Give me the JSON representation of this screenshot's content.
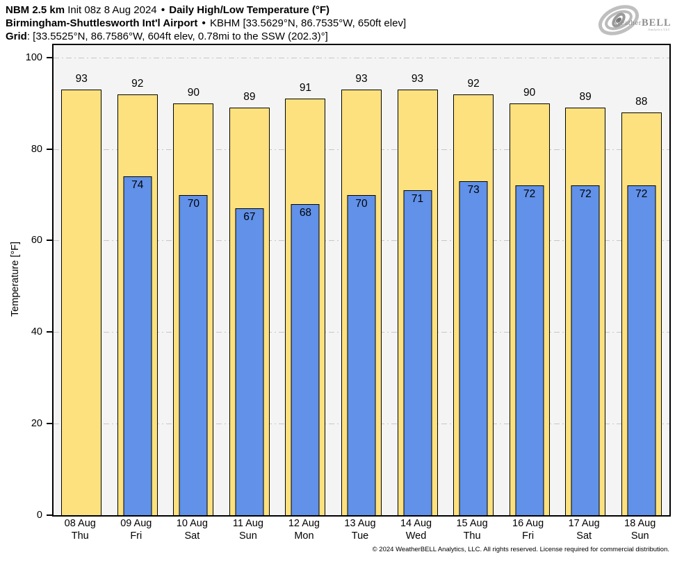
{
  "header": {
    "line1": {
      "model": "NBM 2.5 km",
      "init": "Init 08z 8 Aug 2024",
      "separator": "•",
      "product": "Daily High/Low Temperature (°F)"
    },
    "line2": {
      "station_name": "Birmingham-Shuttlesworth Int'l Airport",
      "separator": "•",
      "station_meta": "KBHM [33.5629°N, 86.7535°W, 650ft elev]"
    },
    "line3": {
      "label": "Grid",
      "value": ": [33.5525°N, 86.7586°W, 604ft elev, 0.78mi to the SSW (202.3)°]"
    }
  },
  "logo": {
    "brand_weather": "Weather",
    "brand_bell": "BELL",
    "subtext": "Analytics LLC"
  },
  "chart_data": {
    "type": "bar",
    "title": "Daily High/Low Temperature (°F)",
    "xlabel": "",
    "ylabel": "Temperature [°F]",
    "ylim": [
      0,
      102.7
    ],
    "yticks": [
      0,
      20,
      40,
      60,
      80,
      100
    ],
    "grid": "horizontal dash-dot gridlines every 20, drawn behind bars",
    "legend_position": "none",
    "plot_background": "#f4f4f4",
    "categories": [
      {
        "date": "08 Aug",
        "day": "Thu"
      },
      {
        "date": "09 Aug",
        "day": "Fri"
      },
      {
        "date": "10 Aug",
        "day": "Sat"
      },
      {
        "date": "11 Aug",
        "day": "Sun"
      },
      {
        "date": "12 Aug",
        "day": "Mon"
      },
      {
        "date": "13 Aug",
        "day": "Tue"
      },
      {
        "date": "14 Aug",
        "day": "Wed"
      },
      {
        "date": "15 Aug",
        "day": "Thu"
      },
      {
        "date": "16 Aug",
        "day": "Fri"
      },
      {
        "date": "17 Aug",
        "day": "Sat"
      },
      {
        "date": "18 Aug",
        "day": "Sun"
      }
    ],
    "series": [
      {
        "name": "Daily High",
        "color": "#fce17e",
        "values": [
          93,
          92,
          90,
          89,
          91,
          93,
          93,
          92,
          90,
          89,
          88
        ]
      },
      {
        "name": "Daily Low",
        "color": "#6191e9",
        "values": [
          null,
          74,
          70,
          67,
          68,
          70,
          71,
          73,
          72,
          72,
          72
        ]
      }
    ]
  },
  "footer": {
    "copyright": "© 2024 WeatherBELL Analytics, LLC. All rights reserved. License required for commercial distribution."
  },
  "colors": {
    "high_bar": "#fce17e",
    "low_bar": "#6191e9",
    "plot_background": "#f4f4f4",
    "gridline": "#c6c6c6",
    "axis": "#000000",
    "logo_gray": "#9c9c9c"
  }
}
